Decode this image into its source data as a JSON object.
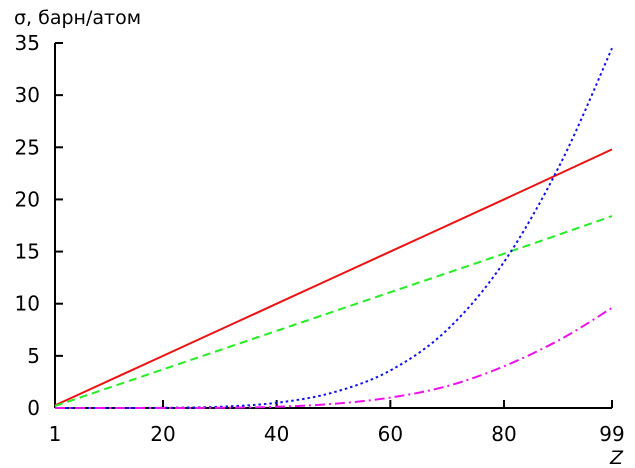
{
  "chart_data": {
    "type": "line",
    "ylabel": "σ, барн/атом",
    "xlabel": "Z",
    "xlim": [
      1,
      99
    ],
    "ylim": [
      0,
      35
    ],
    "x_ticks": [
      1,
      20,
      40,
      60,
      80,
      99
    ],
    "y_ticks": [
      0,
      5,
      10,
      15,
      20,
      25,
      30,
      35
    ],
    "grid": false,
    "legend": "none",
    "series": [
      {
        "color": "#ee1111",
        "dash": "solid",
        "x": [
          1,
          20,
          40,
          60,
          80,
          99
        ],
        "y": [
          0.25,
          5.0,
          10.0,
          15.0,
          20.0,
          24.8
        ]
      },
      {
        "color": "#22ee22",
        "dash": "dashed",
        "x": [
          1,
          20,
          40,
          60,
          80,
          99
        ],
        "y": [
          0.19,
          3.7,
          7.4,
          11.1,
          14.8,
          18.4
        ]
      },
      {
        "color": "#1111ee",
        "dash": "dotted",
        "x": [
          1,
          10,
          20,
          30,
          40,
          50,
          60,
          70,
          80,
          90,
          99
        ],
        "y": [
          0.0,
          0.0,
          0.02,
          0.12,
          0.5,
          1.5,
          3.6,
          7.5,
          14.0,
          23.5,
          34.5
        ]
      },
      {
        "color": "#ee11ee",
        "dash": "dashdot",
        "x": [
          1,
          10,
          20,
          30,
          40,
          50,
          60,
          70,
          80,
          90,
          99
        ],
        "y": [
          0.0,
          0.0,
          0.0,
          0.02,
          0.12,
          0.4,
          1.0,
          2.1,
          4.0,
          6.6,
          9.6
        ]
      }
    ]
  }
}
